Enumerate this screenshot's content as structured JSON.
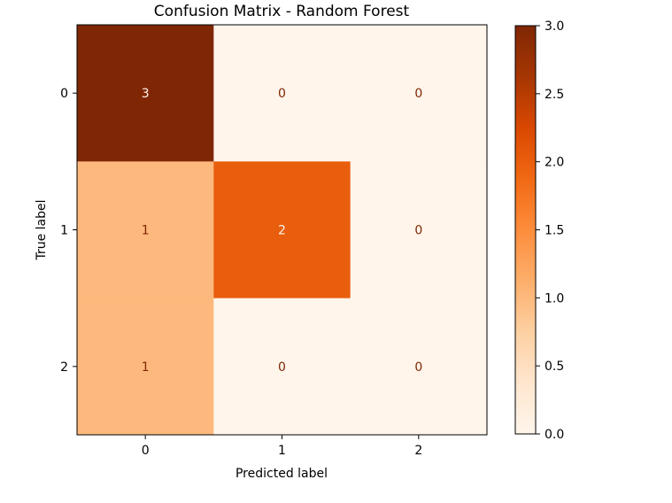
{
  "chart_data": {
    "type": "heatmap",
    "title": "Confusion Matrix - Random Forest",
    "xlabel": "Predicted label",
    "ylabel": "True label",
    "x_categories": [
      "0",
      "1",
      "2"
    ],
    "y_categories": [
      "0",
      "1",
      "2"
    ],
    "matrix": [
      [
        3,
        0,
        0
      ],
      [
        1,
        2,
        0
      ],
      [
        1,
        0,
        0
      ]
    ],
    "colormap": "Oranges",
    "colorbar": {
      "min": 0.0,
      "max": 3.0,
      "ticks": [
        "0.0",
        "0.5",
        "1.0",
        "1.5",
        "2.0",
        "2.5",
        "3.0"
      ]
    },
    "grid": false
  },
  "colors": {
    "low": "#fff5eb",
    "high": "#7f2704",
    "text_on_dark": "#fff5eb",
    "text_on_light": "#7f2704"
  }
}
